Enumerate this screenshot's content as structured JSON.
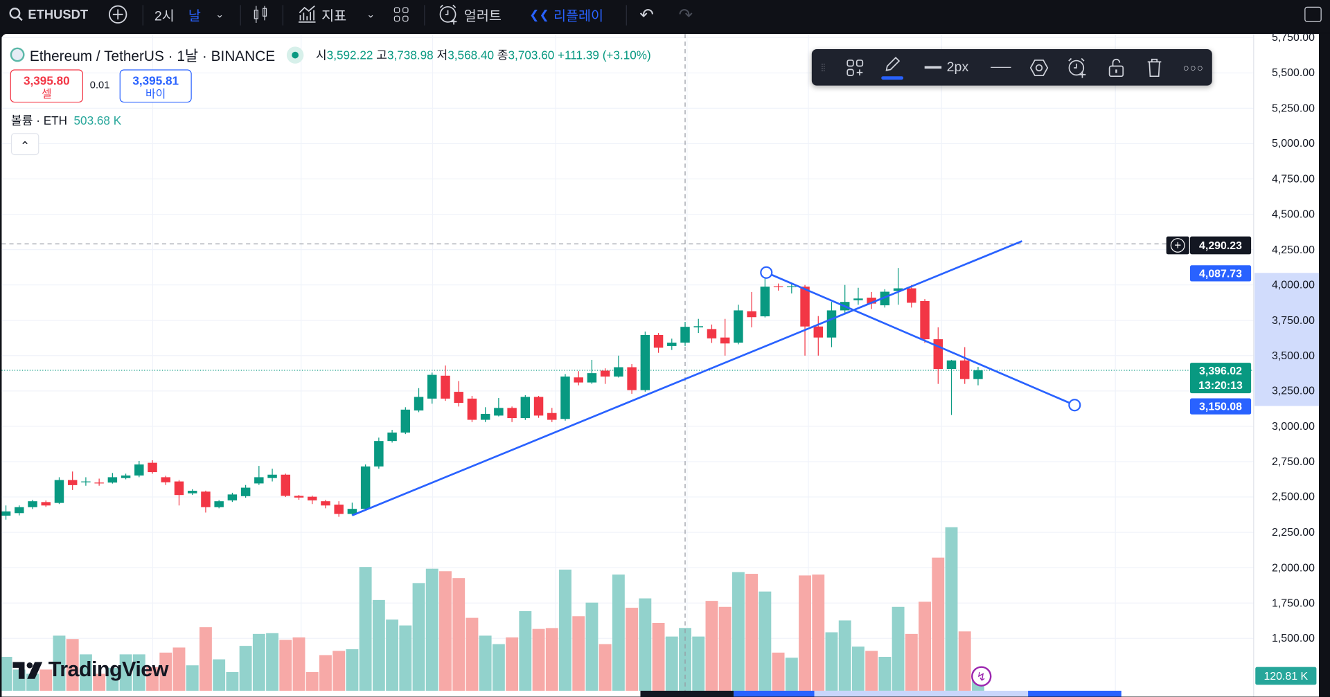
{
  "topbar": {
    "symbol": "ETHUSDT",
    "interval_hour": "2시",
    "interval_day": "날",
    "indicators": "지표",
    "alert": "얼러트",
    "replay": "리플레이"
  },
  "legend": {
    "title": "Ethereum / TetherUS · 1날 · BINANCE",
    "o_label": "시",
    "o": "3,592.22",
    "h_label": "고",
    "h": "3,738.98",
    "l_label": "저",
    "l": "3,568.40",
    "c_label": "종",
    "c": "3,703.60",
    "change": "+111.39 (+3.10%)"
  },
  "trade": {
    "sell_price": "3,395.80",
    "sell_label": "셀",
    "spread": "0.01",
    "buy_price": "3,395.81",
    "buy_label": "바이"
  },
  "volume_legend": {
    "label": "볼륨 · ETH",
    "value": "503.68 K"
  },
  "drawing_toolbar": {
    "width_label": "2px"
  },
  "price_axis": {
    "ticks": [
      "5,750.00",
      "5,500.00",
      "5,250.00",
      "5,000.00",
      "4,750.00",
      "4,500.00",
      "4,250.00",
      "4,000.00",
      "3,750.00",
      "3,500.00",
      "3,250.00",
      "3,000.00",
      "2,750.00",
      "2,500.00",
      "2,250.00",
      "2,000.00",
      "1,750.00",
      "1,500.00"
    ]
  },
  "axis_tags": {
    "crosshair_price": "4,290.23",
    "line_top": "4,087.73",
    "last_price": "3,396.02",
    "countdown": "13:20:13",
    "line_bottom": "3,150.08",
    "volume_last": "120.81 K"
  },
  "logo": "TradingView",
  "colors": {
    "up": "#089981",
    "down": "#f23645",
    "vol_up": "#92d2cc",
    "vol_down": "#f7a9a7",
    "drawing": "#2962ff"
  },
  "chart_data": {
    "type": "candlestick",
    "price_range": [
      1500,
      5750
    ],
    "crosshair": {
      "bar_index": 51,
      "price": 4290.23
    },
    "last_price": 3396.02,
    "columns": [
      "open",
      "close",
      "high",
      "low",
      "volume_k"
    ],
    "bars": [
      [
        2368,
        2398,
        2440,
        2340,
        272
      ],
      [
        2386,
        2428,
        2440,
        2370,
        170
      ],
      [
        2428,
        2470,
        2480,
        2415,
        136
      ],
      [
        2464,
        2440,
        2475,
        2430,
        170
      ],
      [
        2458,
        2620,
        2640,
        2450,
        442
      ],
      [
        2620,
        2584,
        2680,
        2550,
        415
      ],
      [
        2605,
        2610,
        2640,
        2580,
        292
      ],
      [
        2602,
        2596,
        2630,
        2580,
        136
      ],
      [
        2602,
        2640,
        2670,
        2595,
        184
      ],
      [
        2634,
        2652,
        2665,
        2625,
        292
      ],
      [
        2652,
        2730,
        2755,
        2640,
        292
      ],
      [
        2742,
        2676,
        2760,
        2665,
        190
      ],
      [
        2640,
        2604,
        2650,
        2585,
        306
      ],
      [
        2610,
        2514,
        2620,
        2440,
        347
      ],
      [
        2526,
        2544,
        2555,
        2515,
        204
      ],
      [
        2538,
        2428,
        2545,
        2390,
        510
      ],
      [
        2428,
        2470,
        2478,
        2420,
        252
      ],
      [
        2476,
        2518,
        2530,
        2465,
        150
      ],
      [
        2506,
        2566,
        2585,
        2495,
        360
      ],
      [
        2596,
        2640,
        2720,
        2585,
        456
      ],
      [
        2634,
        2658,
        2700,
        2610,
        462
      ],
      [
        2658,
        2508,
        2665,
        2500,
        408
      ],
      [
        2508,
        2496,
        2515,
        2480,
        428
      ],
      [
        2502,
        2476,
        2510,
        2450,
        150
      ],
      [
        2470,
        2440,
        2480,
        2420,
        286
      ],
      [
        2446,
        2380,
        2470,
        2360,
        320
      ],
      [
        2380,
        2416,
        2460,
        2370,
        333
      ],
      [
        2416,
        2716,
        2730,
        2405,
        993
      ],
      [
        2716,
        2896,
        2920,
        2700,
        728
      ],
      [
        2896,
        2956,
        2975,
        2885,
        571
      ],
      [
        2956,
        3118,
        3135,
        2945,
        524
      ],
      [
        3112,
        3208,
        3270,
        3100,
        864
      ],
      [
        3196,
        3364,
        3380,
        3160,
        979
      ],
      [
        3358,
        3196,
        3430,
        3180,
        959
      ],
      [
        3244,
        3166,
        3320,
        3140,
        904
      ],
      [
        3196,
        3046,
        3215,
        3030,
        585
      ],
      [
        3046,
        3088,
        3135,
        3030,
        442
      ],
      [
        3076,
        3130,
        3200,
        3070,
        374
      ],
      [
        3130,
        3058,
        3140,
        3030,
        428
      ],
      [
        3058,
        3208,
        3220,
        3045,
        639
      ],
      [
        3208,
        3076,
        3215,
        3060,
        496
      ],
      [
        3094,
        3046,
        3130,
        3030,
        503
      ],
      [
        3052,
        3352,
        3370,
        3040,
        972
      ],
      [
        3346,
        3310,
        3390,
        3290,
        598
      ],
      [
        3310,
        3376,
        3470,
        3300,
        707
      ],
      [
        3394,
        3352,
        3410,
        3300,
        374
      ],
      [
        3352,
        3418,
        3500,
        3345,
        932
      ],
      [
        3418,
        3256,
        3440,
        3230,
        666
      ],
      [
        3256,
        3646,
        3670,
        3245,
        741
      ],
      [
        3646,
        3556,
        3660,
        3520,
        544
      ],
      [
        3568,
        3592,
        3620,
        3540,
        435
      ],
      [
        3592.22,
        3703.6,
        3738.98,
        3568.4,
        503.68
      ],
      [
        3700,
        3708,
        3760,
        3660,
        435
      ],
      [
        3688,
        3622,
        3720,
        3590,
        721
      ],
      [
        3628,
        3586,
        3760,
        3500,
        673
      ],
      [
        3592,
        3820,
        3860,
        3580,
        952
      ],
      [
        3814,
        3772,
        3950,
        3700,
        938
      ],
      [
        3778,
        3988,
        4050,
        3770,
        796
      ],
      [
        3990,
        3984,
        4010,
        3960,
        306
      ],
      [
        3984,
        3990,
        4010,
        3940,
        265
      ],
      [
        3988,
        3706,
        4000,
        3500,
        925
      ],
      [
        3706,
        3628,
        3780,
        3500,
        932
      ],
      [
        3628,
        3820,
        3880,
        3560,
        469
      ],
      [
        3820,
        3880,
        4000,
        3790,
        564
      ],
      [
        3892,
        3904,
        3980,
        3860,
        354
      ],
      [
        3910,
        3868,
        3950,
        3830,
        320
      ],
      [
        3856,
        3952,
        3970,
        3840,
        272
      ],
      [
        3958,
        3976,
        4120,
        3860,
        673
      ],
      [
        3976,
        3874,
        4000,
        3840,
        456
      ],
      [
        3886,
        3616,
        3900,
        3590,
        714
      ],
      [
        3616,
        3406,
        3700,
        3300,
        1068
      ],
      [
        3406,
        3466,
        3470,
        3080,
        1312
      ],
      [
        3466,
        3334,
        3560,
        3300,
        476
      ],
      [
        3334,
        3396.02,
        3420,
        3290,
        120.81
      ]
    ],
    "drawings": [
      {
        "type": "trend_line",
        "points": [
          [
            26,
            2370
          ],
          [
            76.3,
            4310
          ]
        ]
      },
      {
        "type": "trend_line",
        "points": [
          [
            57.1,
            4087.73
          ],
          [
            80.25,
            3150.08
          ]
        ],
        "selected": true
      }
    ]
  }
}
